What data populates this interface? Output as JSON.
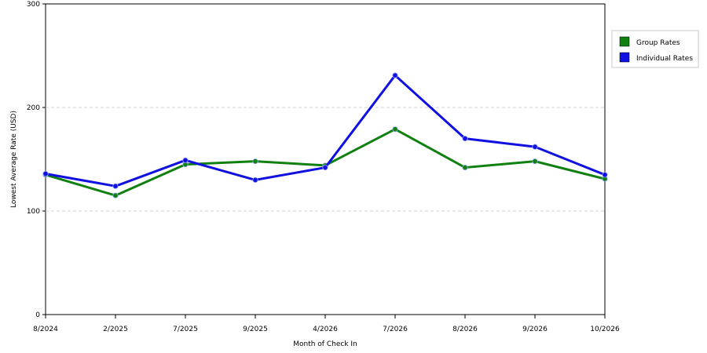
{
  "chart_data": {
    "type": "line",
    "title": "",
    "xlabel": "Month of Check In",
    "ylabel": "Lowest Average Rate (USD)",
    "ylim": [
      0,
      300
    ],
    "yticks": [
      0,
      100,
      200,
      300
    ],
    "grid": true,
    "legend_position": "right",
    "categories": [
      "8/2024",
      "2/2025",
      "7/2025",
      "9/2025",
      "4/2026",
      "7/2026",
      "8/2026",
      "9/2026",
      "10/2026"
    ],
    "series": [
      {
        "name": "Group Rates",
        "color": "#108010",
        "values": [
          135,
          115,
          145,
          148,
          144,
          179,
          142,
          148,
          131
        ]
      },
      {
        "name": "Individual Rates",
        "color": "#1010e0",
        "values": [
          136,
          124,
          149,
          130,
          142,
          231,
          170,
          162,
          135
        ]
      }
    ]
  }
}
